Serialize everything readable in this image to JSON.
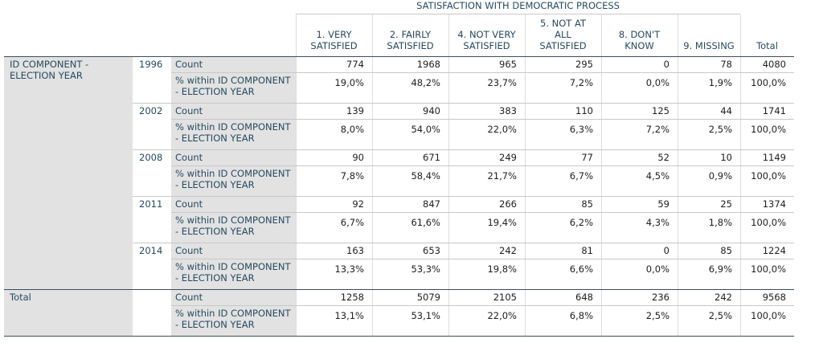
{
  "table": {
    "spanner": "SATISFACTION WITH DEMOCRATIC PROCESS",
    "columns": [
      [
        "1. VERY",
        "SATISFIED"
      ],
      [
        "2. FAIRLY",
        "SATISFIED"
      ],
      [
        "4. NOT VERY",
        "SATISFIED"
      ],
      [
        "5. NOT AT",
        "ALL",
        "SATISFIED"
      ],
      [
        "8. DON'T",
        "KNOW"
      ],
      [
        "9. MISSING"
      ],
      [
        "Total"
      ]
    ],
    "row_var": [
      "ID COMPONENT -",
      "ELECTION YEAR"
    ],
    "count_label": "Count",
    "pct_label": [
      "% within ID COMPONENT",
      "- ELECTION YEAR"
    ],
    "groups": [
      {
        "year": "1996",
        "count": [
          "774",
          "1968",
          "965",
          "295",
          "0",
          "78",
          "4080"
        ],
        "pct": [
          "19,0%",
          "48,2%",
          "23,7%",
          "7,2%",
          "0,0%",
          "1,9%",
          "100,0%"
        ]
      },
      {
        "year": "2002",
        "count": [
          "139",
          "940",
          "383",
          "110",
          "125",
          "44",
          "1741"
        ],
        "pct": [
          "8,0%",
          "54,0%",
          "22,0%",
          "6,3%",
          "7,2%",
          "2,5%",
          "100,0%"
        ]
      },
      {
        "year": "2008",
        "count": [
          "90",
          "671",
          "249",
          "77",
          "52",
          "10",
          "1149"
        ],
        "pct": [
          "7,8%",
          "58,4%",
          "21,7%",
          "6,7%",
          "4,5%",
          "0,9%",
          "100,0%"
        ]
      },
      {
        "year": "2011",
        "count": [
          "92",
          "847",
          "266",
          "85",
          "59",
          "25",
          "1374"
        ],
        "pct": [
          "6,7%",
          "61,6%",
          "19,4%",
          "6,2%",
          "4,3%",
          "1,8%",
          "100,0%"
        ]
      },
      {
        "year": "2014",
        "count": [
          "163",
          "653",
          "242",
          "81",
          "0",
          "85",
          "1224"
        ],
        "pct": [
          "13,3%",
          "53,3%",
          "19,8%",
          "6,6%",
          "0,0%",
          "6,9%",
          "100,0%"
        ]
      }
    ],
    "total_label": "Total",
    "total": {
      "count": [
        "1258",
        "5079",
        "2105",
        "648",
        "236",
        "242",
        "9568"
      ],
      "pct": [
        "13,1%",
        "53,1%",
        "22,0%",
        "6,8%",
        "2,5%",
        "2,5%",
        "100,0%"
      ]
    }
  }
}
